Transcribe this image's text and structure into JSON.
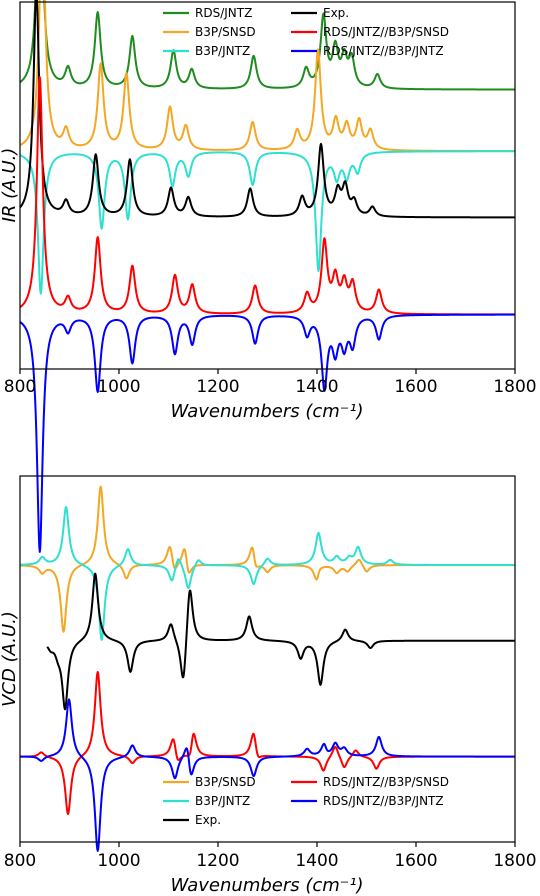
{
  "chart_data": [
    {
      "type": "line",
      "panel": "IR",
      "ylabel": "IR (A.U.)",
      "xlabel": "Wavenumbers (cm⁻¹)",
      "xlim": [
        800,
        1800
      ],
      "xticks": [
        "800",
        "1000",
        "1200",
        "1400",
        "1600",
        "1800"
      ],
      "legend": [
        {
          "name": "RDS/JNTZ",
          "color": "#1e8c1e"
        },
        {
          "name": "Exp.",
          "color": "#000000"
        },
        {
          "name": "B3P/SNSD",
          "color": "#f5a623"
        },
        {
          "name": "RDS/JNTZ//B3P/SNSD",
          "color": "#ff0000"
        },
        {
          "name": "B3P/JNTZ",
          "color": "#2ee0d0"
        },
        {
          "name": "RDS/JNTZ//B3P/JNTZ",
          "color": "#0000ff"
        }
      ],
      "series": [
        {
          "name": "RDS/JNTZ",
          "color": "#1e8c1e",
          "baseline": 0.73,
          "sign": 1,
          "peaks": [
            [
              840,
              1.0
            ],
            [
              897,
              0.08
            ],
            [
              957,
              0.32
            ],
            [
              1027,
              0.22
            ],
            [
              1110,
              0.16
            ],
            [
              1147,
              0.08
            ],
            [
              1272,
              0.14
            ],
            [
              1378,
              0.08
            ],
            [
              1413,
              0.3
            ],
            [
              1437,
              0.16
            ],
            [
              1455,
              0.12
            ],
            [
              1470,
              0.12
            ],
            [
              1522,
              0.06
            ]
          ]
        },
        {
          "name": "B3P/SNSD",
          "color": "#f5a623",
          "baseline": 0.47,
          "sign": 1,
          "peaks": [
            [
              845,
              1.0
            ],
            [
              893,
              0.08
            ],
            [
              963,
              0.36
            ],
            [
              1015,
              0.32
            ],
            [
              1103,
              0.18
            ],
            [
              1135,
              0.1
            ],
            [
              1270,
              0.12
            ],
            [
              1360,
              0.08
            ],
            [
              1402,
              0.42
            ],
            [
              1438,
              0.12
            ],
            [
              1460,
              0.1
            ],
            [
              1485,
              0.12
            ],
            [
              1508,
              0.08
            ]
          ]
        },
        {
          "name": "B3P/JNTZ",
          "color": "#2ee0d0",
          "baseline": 0.47,
          "sign": -1,
          "peaks": [
            [
              842,
              0.6
            ],
            [
              965,
              0.32
            ],
            [
              1018,
              0.28
            ],
            [
              1108,
              0.14
            ],
            [
              1140,
              0.1
            ],
            [
              1270,
              0.14
            ],
            [
              1403,
              0.5
            ],
            [
              1440,
              0.1
            ],
            [
              1460,
              0.1
            ],
            [
              1482,
              0.08
            ]
          ]
        },
        {
          "name": "Exp.",
          "color": "#000000",
          "baseline": 0.19,
          "sign": 1,
          "peaks": [
            [
              833,
              0.95
            ],
            [
              893,
              0.06
            ],
            [
              953,
              0.26
            ],
            [
              1022,
              0.24
            ],
            [
              1105,
              0.12
            ],
            [
              1140,
              0.08
            ],
            [
              1265,
              0.12
            ],
            [
              1370,
              0.08
            ],
            [
              1408,
              0.3
            ],
            [
              1442,
              0.1
            ],
            [
              1457,
              0.12
            ],
            [
              1475,
              0.06
            ],
            [
              1512,
              0.04
            ]
          ]
        },
        {
          "name": "RDS/JNTZ//B3P/SNSD",
          "color": "#ff0000",
          "baseline": -0.22,
          "sign": 1,
          "peaks": [
            [
              840,
              1.0
            ],
            [
              897,
              0.06
            ],
            [
              957,
              0.32
            ],
            [
              1027,
              0.2
            ],
            [
              1113,
              0.16
            ],
            [
              1148,
              0.12
            ],
            [
              1275,
              0.12
            ],
            [
              1380,
              0.08
            ],
            [
              1415,
              0.3
            ],
            [
              1437,
              0.14
            ],
            [
              1455,
              0.12
            ],
            [
              1472,
              0.12
            ],
            [
              1525,
              0.1
            ]
          ]
        },
        {
          "name": "RDS/JNTZ//B3P/JNTZ",
          "color": "#0000ff",
          "baseline": -0.22,
          "sign": -1,
          "peaks": [
            [
              840,
              1.0
            ],
            [
              897,
              0.06
            ],
            [
              957,
              0.32
            ],
            [
              1027,
              0.2
            ],
            [
              1113,
              0.16
            ],
            [
              1148,
              0.12
            ],
            [
              1275,
              0.12
            ],
            [
              1380,
              0.08
            ],
            [
              1415,
              0.3
            ],
            [
              1437,
              0.14
            ],
            [
              1455,
              0.12
            ],
            [
              1472,
              0.12
            ],
            [
              1525,
              0.1
            ]
          ]
        }
      ],
      "ylim": [
        -0.45,
        1.1
      ]
    },
    {
      "type": "line",
      "panel": "VCD",
      "ylabel": "VCD (A.U.)",
      "xlabel": "Wavenumbers (cm⁻¹)",
      "xlim": [
        800,
        1800
      ],
      "xticks": [
        "800",
        "1000",
        "1200",
        "1400",
        "1600",
        "1800"
      ],
      "legend": [
        {
          "name": "B3P/SNSD",
          "color": "#f5a623"
        },
        {
          "name": "RDS/JNTZ//B3P/SNSD",
          "color": "#ff0000"
        },
        {
          "name": "B3P/JNTZ",
          "color": "#2ee0d0"
        },
        {
          "name": "RDS/JNTZ//B3P/JNTZ",
          "color": "#0000ff"
        },
        {
          "name": "Exp.",
          "color": "#000000"
        }
      ],
      "series": [
        {
          "name": "B3P/SNSD",
          "color": "#f5a623",
          "baseline": 0.62,
          "peaks": [
            [
              845,
              -0.06
            ],
            [
              888,
              -0.55
            ],
            [
              963,
              0.65
            ],
            [
              1015,
              -0.12
            ],
            [
              1103,
              0.18
            ],
            [
              1112,
              -0.1
            ],
            [
              1133,
              0.2
            ],
            [
              1140,
              -0.15
            ],
            [
              1270,
              0.22
            ],
            [
              1275,
              -0.12
            ],
            [
              1300,
              -0.06
            ],
            [
              1400,
              -0.18
            ],
            [
              1403,
              0.08
            ],
            [
              1440,
              -0.06
            ],
            [
              1462,
              -0.05
            ],
            [
              1485,
              0.06
            ],
            [
              1500,
              -0.06
            ]
          ]
        },
        {
          "name": "B3P/JNTZ",
          "color": "#2ee0d0",
          "baseline": 0.62,
          "peaks": [
            [
              845,
              0.06
            ],
            [
              893,
              0.48
            ],
            [
              965,
              -0.62
            ],
            [
              1018,
              0.14
            ],
            [
              1107,
              -0.14
            ],
            [
              1120,
              0.1
            ],
            [
              1140,
              -0.2
            ],
            [
              1160,
              0.06
            ],
            [
              1272,
              -0.16
            ],
            [
              1300,
              0.06
            ],
            [
              1403,
              0.26
            ],
            [
              1440,
              0.06
            ],
            [
              1465,
              0.05
            ],
            [
              1483,
              0.14
            ],
            [
              1548,
              0.04
            ]
          ]
        },
        {
          "name": "Exp.",
          "color": "#000000",
          "baseline": 0.0,
          "xstart": 855,
          "peaks": [
            [
              862,
              -0.05
            ],
            [
              877,
              -0.08
            ],
            [
              891,
              -0.55
            ],
            [
              952,
              0.56
            ],
            [
              1023,
              -0.26
            ],
            [
              1105,
              0.15
            ],
            [
              1130,
              -0.42
            ],
            [
              1143,
              0.5
            ],
            [
              1263,
              0.2
            ],
            [
              1367,
              -0.14
            ],
            [
              1407,
              -0.36
            ],
            [
              1457,
              0.1
            ],
            [
              1508,
              -0.06
            ]
          ]
        },
        {
          "name": "RDS/JNTZ//B3P/SNSD",
          "color": "#ff0000",
          "baseline": -0.95,
          "peaks": [
            [
              843,
              0.04
            ],
            [
              897,
              -0.48
            ],
            [
              957,
              0.7
            ],
            [
              1027,
              -0.06
            ],
            [
              1110,
              0.18
            ],
            [
              1118,
              -0.1
            ],
            [
              1145,
              -0.12
            ],
            [
              1150,
              0.26
            ],
            [
              1272,
              0.22
            ],
            [
              1280,
              -0.08
            ],
            [
              1413,
              -0.12
            ],
            [
              1437,
              0.1
            ],
            [
              1455,
              -0.1
            ],
            [
              1478,
              0.06
            ],
            [
              1520,
              -0.1
            ]
          ]
        },
        {
          "name": "RDS/JNTZ//B3P/JNTZ",
          "color": "#0000ff",
          "baseline": -0.95,
          "peaks": [
            [
              843,
              -0.04
            ],
            [
              899,
              0.48
            ],
            [
              957,
              -0.78
            ],
            [
              1027,
              0.1
            ],
            [
              1113,
              -0.18
            ],
            [
              1138,
              0.18
            ],
            [
              1145,
              -0.22
            ],
            [
              1272,
              -0.16
            ],
            [
              1380,
              0.06
            ],
            [
              1415,
              0.14
            ],
            [
              1418,
              -0.06
            ],
            [
              1437,
              0.1
            ],
            [
              1455,
              0.06
            ],
            [
              1525,
              0.16
            ]
          ]
        }
      ],
      "ylim": [
        -1.65,
        1.35
      ]
    }
  ]
}
